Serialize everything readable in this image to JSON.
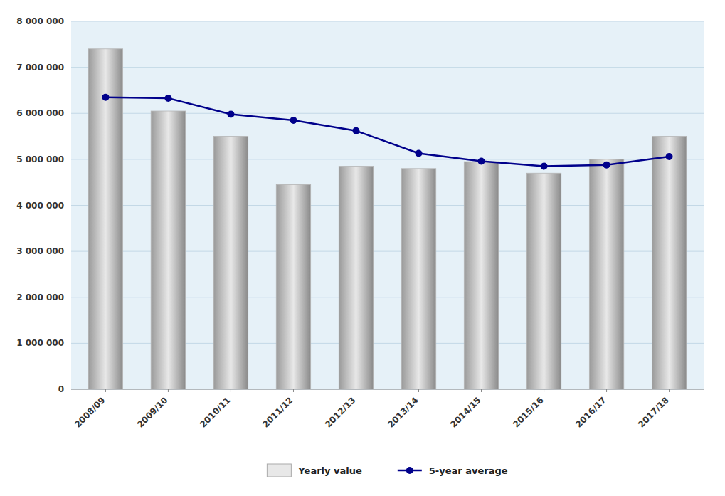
{
  "chart_data": {
    "type": "bar",
    "categories": [
      "2008/09",
      "2009/10",
      "2010/11",
      "2011/12",
      "2012/13",
      "2013/14",
      "2014/15",
      "2015/16",
      "2016/17",
      "2017/18"
    ],
    "series": [
      {
        "name": "Yearly value",
        "type": "bar",
        "color": "#e8e8e8",
        "values": [
          7400000,
          6050000,
          5500000,
          4450000,
          4850000,
          4800000,
          4950000,
          4700000,
          5000000,
          5500000
        ]
      },
      {
        "name": "5-year average",
        "type": "line",
        "color": "#00008B",
        "marker": "circle",
        "line_style": "solid",
        "values": [
          6350000,
          6330000,
          5980000,
          5850000,
          5620000,
          5130000,
          4960000,
          4850000,
          4880000,
          5060000
        ]
      }
    ],
    "ylim": [
      0,
      8000000
    ],
    "yticks": [
      0,
      {
        "value": 1000000,
        "label": "1 000 000"
      },
      {
        "value": 2000000,
        "label": "2 000 000"
      },
      {
        "value": 3000000,
        "label": "3 000 000"
      },
      {
        "value": 4000000,
        "label": "4 000 000"
      },
      {
        "value": 5000000,
        "label": "5 000 000"
      },
      {
        "value": 6000000,
        "label": "6 000 000"
      },
      {
        "value": 7000000,
        "label": "7 000 000"
      },
      {
        "value": 8000000,
        "label": "8 000 000"
      }
    ],
    "grid": true,
    "legend": "bottom"
  }
}
